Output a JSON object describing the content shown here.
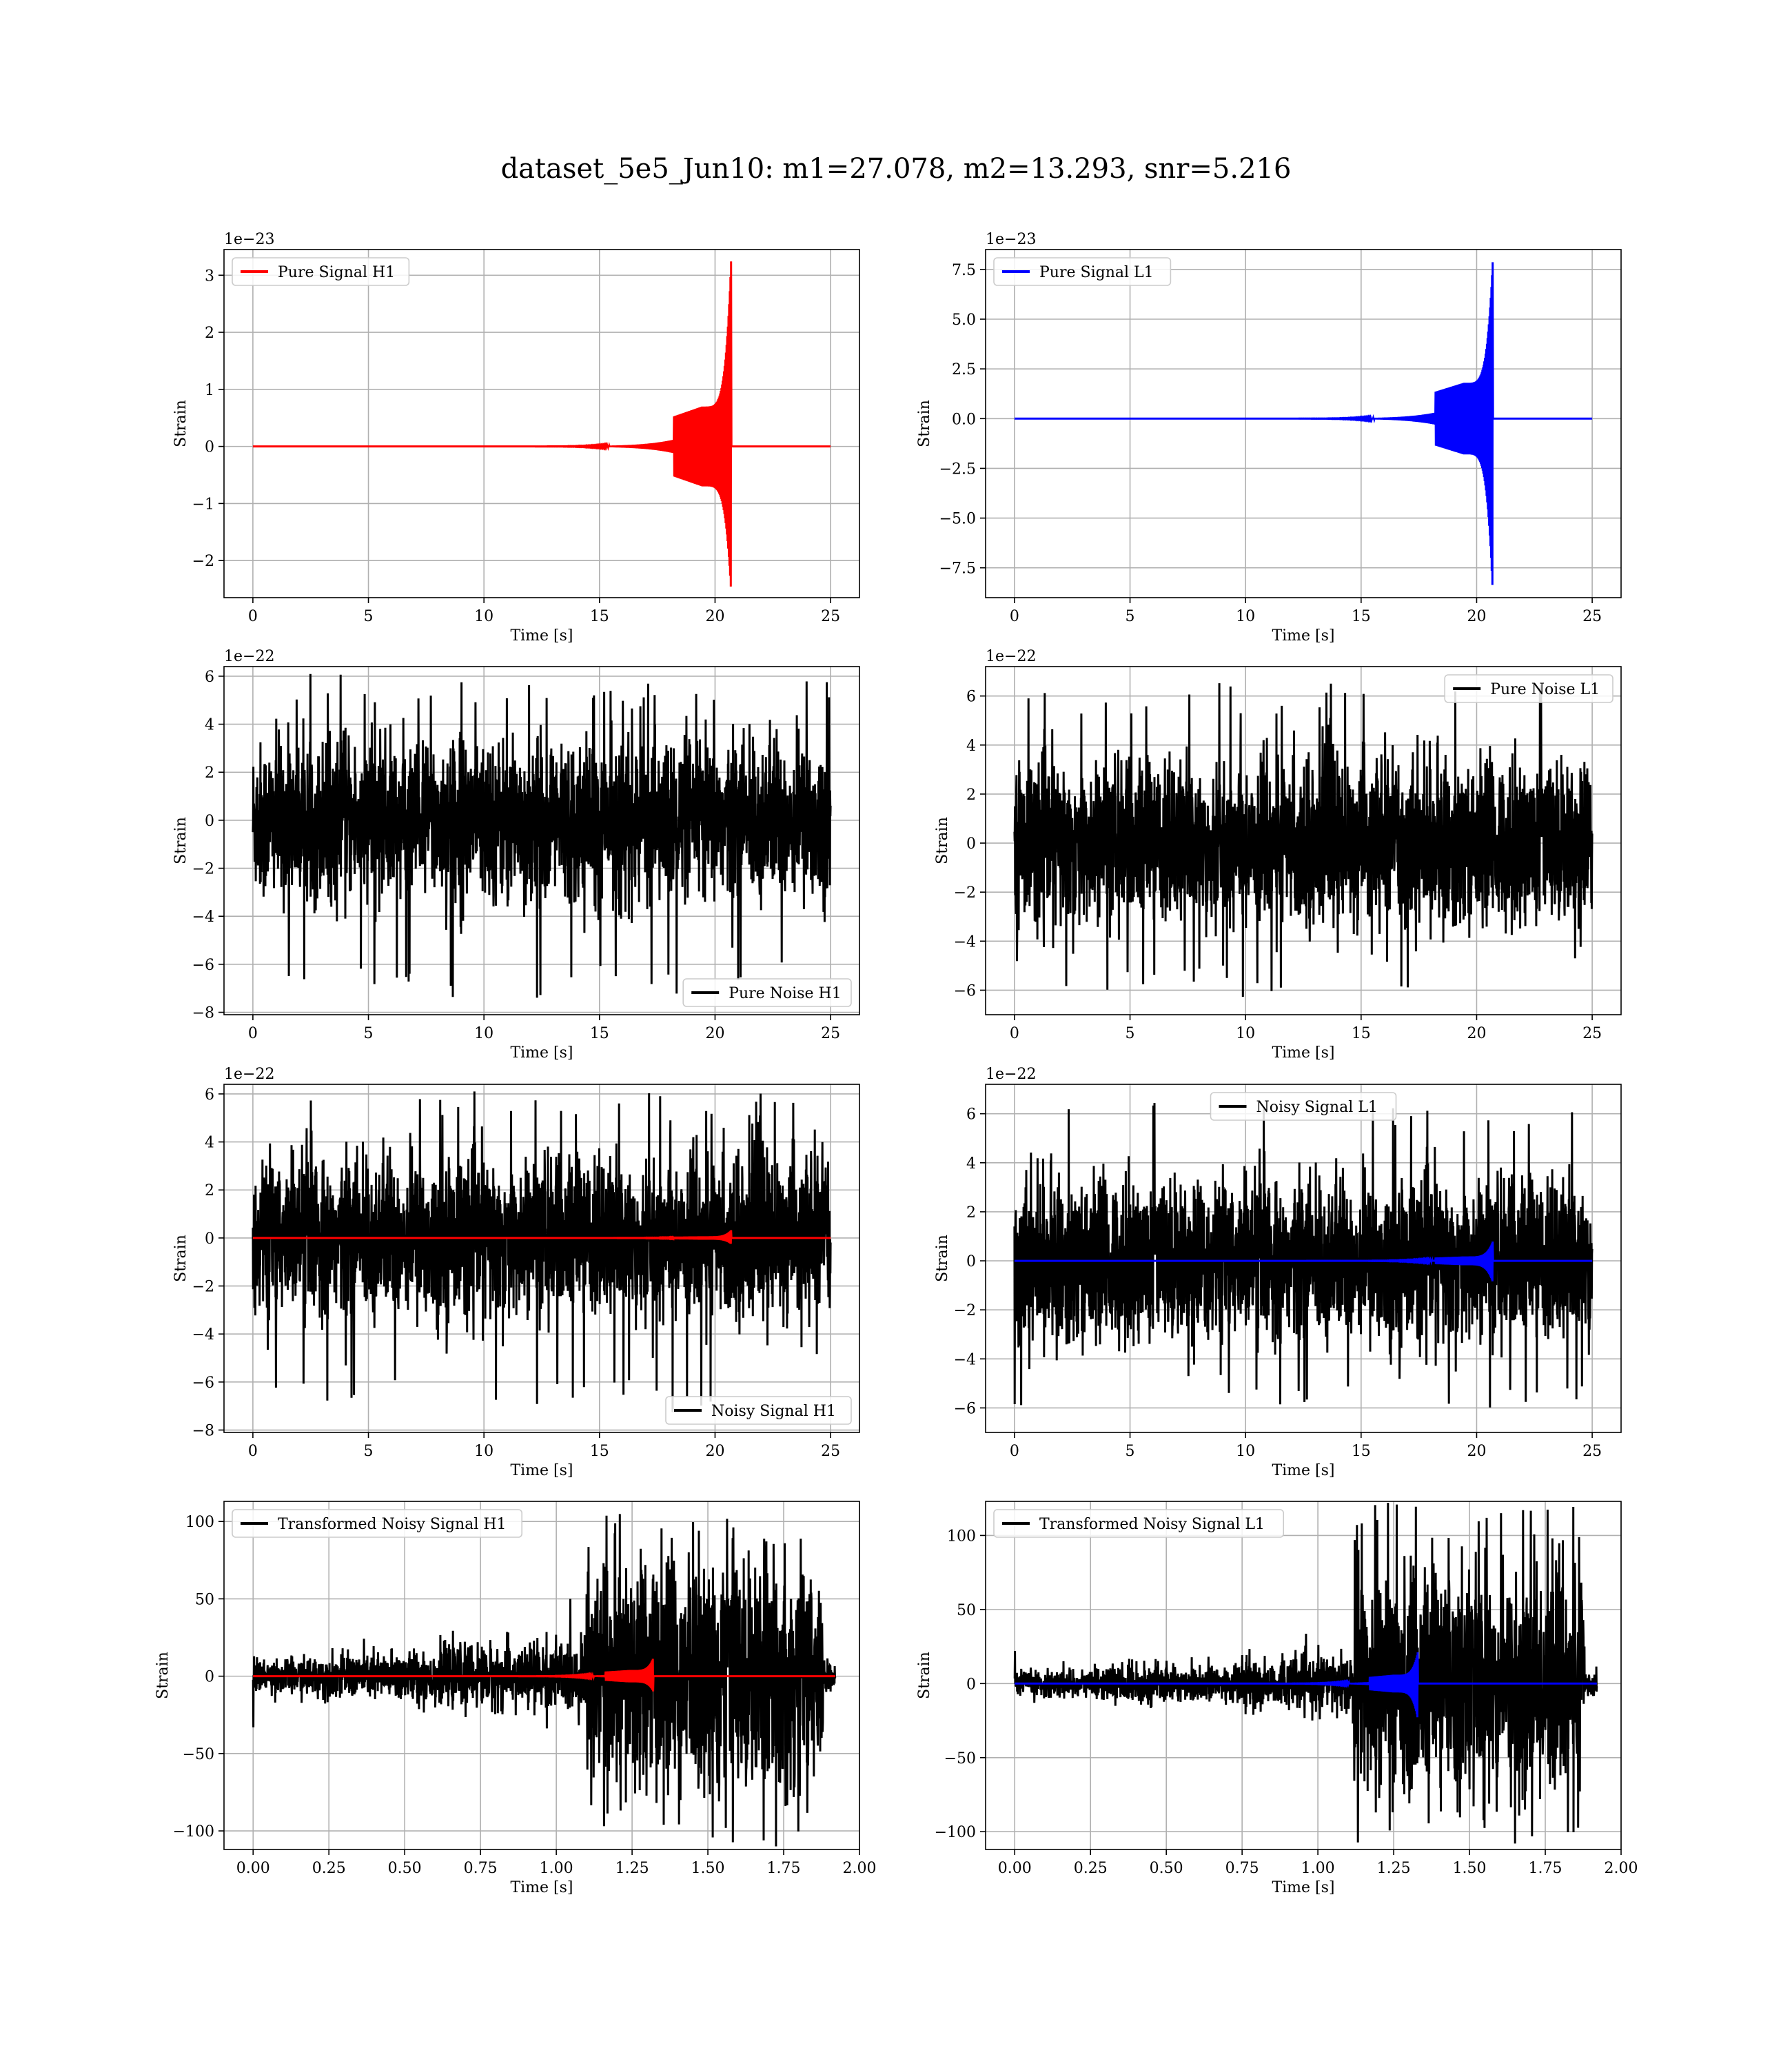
{
  "figure": {
    "title": "dataset_5e5_Jun10: m1=27.078, m2=13.293, snr=5.216",
    "colors": {
      "h1_signal": "#ff0000",
      "l1_signal": "#0000ff",
      "noise": "#000000",
      "grid": "#b0b0b0"
    }
  },
  "chart_data": [
    {
      "id": "pure-signal-h1",
      "type": "line",
      "kind": "chirp",
      "xlabel": "Time [s]",
      "ylabel": "Strain",
      "offset_label": "1e−23",
      "xlim": [
        -1.25,
        26.25
      ],
      "ylim": [
        -2.65,
        3.45
      ],
      "xticks": [
        0,
        5,
        10,
        15,
        20,
        25
      ],
      "xtick_labels": [
        "0",
        "5",
        "10",
        "15",
        "20",
        "25"
      ],
      "yticks": [
        -2,
        -1,
        0,
        1,
        2,
        3
      ],
      "ytick_labels": [
        "−2",
        "−1",
        "0",
        "1",
        "2",
        "3"
      ],
      "legend": "upper left",
      "series": [
        {
          "name": "Pure Signal H1",
          "color": "#ff0000",
          "x_range": [
            0,
            25
          ],
          "merger_time": 20.7,
          "peak_upper": 3.3,
          "peak_lower": -2.6,
          "plateau": 0.7
        }
      ]
    },
    {
      "id": "pure-signal-l1",
      "type": "line",
      "kind": "chirp",
      "xlabel": "Time [s]",
      "ylabel": "Strain",
      "offset_label": "1e−23",
      "xlim": [
        -1.25,
        26.25
      ],
      "ylim": [
        -9.0,
        8.5
      ],
      "xticks": [
        0,
        5,
        10,
        15,
        20,
        25
      ],
      "xtick_labels": [
        "0",
        "5",
        "10",
        "15",
        "20",
        "25"
      ],
      "yticks": [
        -7.5,
        -5.0,
        -2.5,
        0.0,
        2.5,
        5.0,
        7.5
      ],
      "ytick_labels": [
        "−7.5",
        "−5.0",
        "−2.5",
        "0.0",
        "2.5",
        "5.0",
        "7.5"
      ],
      "legend": "upper left",
      "series": [
        {
          "name": "Pure Signal L1",
          "color": "#0000ff",
          "x_range": [
            0,
            25
          ],
          "merger_time": 20.7,
          "peak_upper": 8.0,
          "peak_lower": -8.9,
          "plateau": 1.8
        }
      ]
    },
    {
      "id": "pure-noise-h1",
      "type": "line",
      "kind": "noise",
      "xlabel": "Time [s]",
      "ylabel": "Strain",
      "offset_label": "1e−22",
      "xlim": [
        -1.25,
        26.25
      ],
      "ylim": [
        -8.1,
        6.4
      ],
      "xticks": [
        0,
        5,
        10,
        15,
        20,
        25
      ],
      "xtick_labels": [
        "0",
        "5",
        "10",
        "15",
        "20",
        "25"
      ],
      "yticks": [
        -8,
        -6,
        -4,
        -2,
        0,
        2,
        4,
        6
      ],
      "ytick_labels": [
        "−8",
        "−6",
        "−4",
        "−2",
        "0",
        "2",
        "4",
        "6"
      ],
      "legend": "lower right",
      "series": [
        {
          "name": "Pure Noise H1",
          "color": "#000000",
          "x_range": [
            0,
            25
          ],
          "noise_min": -7.4,
          "noise_max": 6.1,
          "noise_sigma": 1.6
        }
      ]
    },
    {
      "id": "pure-noise-l1",
      "type": "line",
      "kind": "noise",
      "xlabel": "Time [s]",
      "ylabel": "Strain",
      "offset_label": "1e−22",
      "xlim": [
        -1.25,
        26.25
      ],
      "ylim": [
        -7.0,
        7.2
      ],
      "xticks": [
        0,
        5,
        10,
        15,
        20,
        25
      ],
      "xtick_labels": [
        "0",
        "5",
        "10",
        "15",
        "20",
        "25"
      ],
      "yticks": [
        -6,
        -4,
        -2,
        0,
        2,
        4,
        6
      ],
      "ytick_labels": [
        "−6",
        "−4",
        "−2",
        "0",
        "2",
        "4",
        "6"
      ],
      "legend": "upper right",
      "series": [
        {
          "name": "Pure Noise L1",
          "color": "#000000",
          "x_range": [
            0,
            25
          ],
          "noise_min": -6.4,
          "noise_max": 6.6,
          "noise_sigma": 1.6
        }
      ]
    },
    {
      "id": "noisy-signal-h1",
      "type": "line",
      "kind": "noisy_signal",
      "xlabel": "Time [s]",
      "ylabel": "Strain",
      "offset_label": "1e−22",
      "xlim": [
        -1.25,
        26.25
      ],
      "ylim": [
        -8.1,
        6.4
      ],
      "xticks": [
        0,
        5,
        10,
        15,
        20,
        25
      ],
      "xtick_labels": [
        "0",
        "5",
        "10",
        "15",
        "20",
        "25"
      ],
      "yticks": [
        -8,
        -6,
        -4,
        -2,
        0,
        2,
        4,
        6
      ],
      "ytick_labels": [
        "−8",
        "−6",
        "−4",
        "−2",
        "0",
        "2",
        "4",
        "6"
      ],
      "legend": "lower right",
      "series": [
        {
          "name": "Noisy Signal H1",
          "color": "#000000",
          "x_range": [
            0,
            25
          ],
          "noise_min": -7.4,
          "noise_max": 6.1,
          "noise_sigma": 1.6
        },
        {
          "color": "#ff0000",
          "x_range": [
            0,
            25
          ],
          "merger_time": 20.7,
          "peak_upper": 0.33,
          "peak_lower": -0.26,
          "plateau": 0.07
        }
      ]
    },
    {
      "id": "noisy-signal-l1",
      "type": "line",
      "kind": "noisy_signal",
      "xlabel": "Time [s]",
      "ylabel": "Strain",
      "offset_label": "1e−22",
      "xlim": [
        -1.25,
        26.25
      ],
      "ylim": [
        -7.0,
        7.2
      ],
      "xticks": [
        0,
        5,
        10,
        15,
        20,
        25
      ],
      "xtick_labels": [
        "0",
        "5",
        "10",
        "15",
        "20",
        "25"
      ],
      "yticks": [
        -6,
        -4,
        -2,
        0,
        2,
        4,
        6
      ],
      "ytick_labels": [
        "−6",
        "−4",
        "−2",
        "0",
        "2",
        "4",
        "6"
      ],
      "legend": "upper center",
      "series": [
        {
          "name": "Noisy Signal L1",
          "color": "#000000",
          "x_range": [
            0,
            25
          ],
          "noise_min": -6.4,
          "noise_max": 6.6,
          "noise_sigma": 1.6
        },
        {
          "color": "#0000ff",
          "x_range": [
            0,
            25
          ],
          "merger_time": 20.7,
          "peak_upper": 0.8,
          "peak_lower": -0.89,
          "plateau": 0.18
        }
      ]
    },
    {
      "id": "transformed-h1",
      "type": "line",
      "kind": "transformed",
      "xlabel": "Time [s]",
      "ylabel": "Strain",
      "offset_label": "",
      "xlim": [
        -0.096,
        2.0
      ],
      "ylim": [
        -112,
        113
      ],
      "xticks": [
        0,
        0.25,
        0.5,
        0.75,
        1.0,
        1.25,
        1.5,
        1.75,
        2.0
      ],
      "xtick_labels": [
        "0.00",
        "0.25",
        "0.50",
        "0.75",
        "1.00",
        "1.25",
        "1.50",
        "1.75",
        "2.00"
      ],
      "yticks": [
        -100,
        -50,
        0,
        50,
        100
      ],
      "ytick_labels": [
        "−100",
        "−50",
        "0",
        "50",
        "100"
      ],
      "legend": "upper left",
      "series": [
        {
          "name": "Transformed Noisy Signal H1",
          "color": "#000000",
          "x_range": [
            0,
            1.92
          ],
          "step_time": 1.1,
          "low_amp": 10,
          "high_amp": 95,
          "tail_time": 1.88,
          "start_spike": -33,
          "noise_max": 105,
          "noise_min": -110
        },
        {
          "color": "#ff0000",
          "x_range": [
            0,
            1.92
          ],
          "merger_time": 1.32,
          "peak_upper": 12,
          "peak_lower": -10,
          "plateau": 4
        }
      ]
    },
    {
      "id": "transformed-l1",
      "type": "line",
      "kind": "transformed",
      "xlabel": "Time [s]",
      "ylabel": "Strain",
      "offset_label": "",
      "xlim": [
        -0.096,
        2.0
      ],
      "ylim": [
        -112,
        123
      ],
      "xticks": [
        0,
        0.25,
        0.5,
        0.75,
        1.0,
        1.25,
        1.5,
        1.75,
        2.0
      ],
      "xtick_labels": [
        "0.00",
        "0.25",
        "0.50",
        "0.75",
        "1.00",
        "1.25",
        "1.50",
        "1.75",
        "2.00"
      ],
      "yticks": [
        -100,
        -50,
        0,
        50,
        100
      ],
      "ytick_labels": [
        "−100",
        "−50",
        "0",
        "50",
        "100"
      ],
      "legend": "upper left",
      "series": [
        {
          "name": "Transformed Noisy Signal L1",
          "color": "#000000",
          "x_range": [
            0,
            1.92
          ],
          "step_time": 1.12,
          "low_amp": 8,
          "high_amp": 95,
          "tail_time": 1.88,
          "start_spike": 22,
          "noise_max": 122,
          "noise_min": -108
        },
        {
          "color": "#0000ff",
          "x_range": [
            0,
            1.92
          ],
          "merger_time": 1.33,
          "peak_upper": 22,
          "peak_lower": -25,
          "plateau": 6
        }
      ]
    }
  ]
}
